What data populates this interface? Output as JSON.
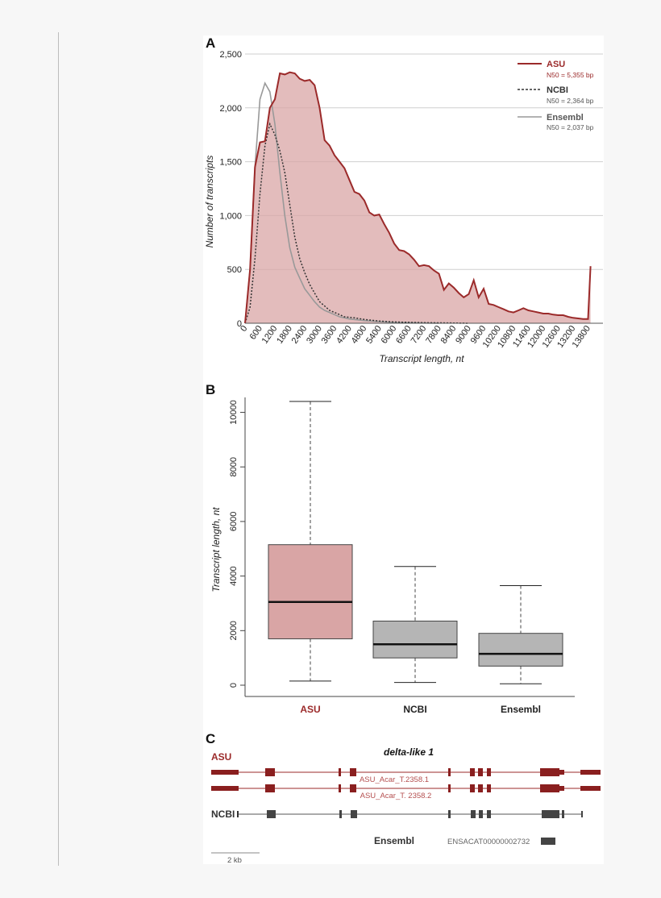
{
  "colors": {
    "asu": "#9b2a2a",
    "asu_fill": "#d9a5a5",
    "ncbi": "#333333",
    "ensembl": "#999999",
    "box_gray": "#b5b5b5"
  },
  "chart_data": [
    {
      "panel": "A",
      "type": "area",
      "xlabel": "Transcript length, nt",
      "ylabel": "Number of transcripts",
      "ylim": [
        0,
        2500
      ],
      "yticks": [
        0,
        500,
        1000,
        1500,
        2000,
        2500
      ],
      "ytick_labels": [
        "0",
        "500",
        "1,000",
        "1,500",
        "2,000",
        "2,500"
      ],
      "xlim": [
        0,
        14400
      ],
      "xticks": [
        0,
        600,
        1200,
        1800,
        2400,
        3000,
        3600,
        4200,
        4800,
        5400,
        6000,
        6600,
        7200,
        7800,
        8400,
        9000,
        9600,
        10200,
        10800,
        11400,
        12000,
        12600,
        13200,
        13800
      ],
      "legend": [
        {
          "name": "ASU",
          "n50": "N50 = 5,355 bp"
        },
        {
          "name": "NCBI",
          "n50": "N50 = 2,364 bp"
        },
        {
          "name": "Ensembl",
          "n50": "N50 = 2,037 bp"
        }
      ],
      "series": [
        {
          "name": "ASU",
          "points": [
            [
              0,
              0
            ],
            [
              200,
              500
            ],
            [
              400,
              1450
            ],
            [
              600,
              1680
            ],
            [
              800,
              1690
            ],
            [
              1000,
              2000
            ],
            [
              1200,
              2080
            ],
            [
              1400,
              2320
            ],
            [
              1600,
              2310
            ],
            [
              1800,
              2330
            ],
            [
              2000,
              2320
            ],
            [
              2200,
              2270
            ],
            [
              2400,
              2250
            ],
            [
              2600,
              2260
            ],
            [
              2800,
              2210
            ],
            [
              3000,
              2000
            ],
            [
              3200,
              1700
            ],
            [
              3400,
              1650
            ],
            [
              3600,
              1560
            ],
            [
              3800,
              1500
            ],
            [
              4000,
              1440
            ],
            [
              4200,
              1330
            ],
            [
              4400,
              1220
            ],
            [
              4600,
              1200
            ],
            [
              4800,
              1140
            ],
            [
              5000,
              1030
            ],
            [
              5200,
              1000
            ],
            [
              5400,
              1010
            ],
            [
              5600,
              920
            ],
            [
              5800,
              840
            ],
            [
              6000,
              740
            ],
            [
              6200,
              680
            ],
            [
              6400,
              670
            ],
            [
              6600,
              640
            ],
            [
              6800,
              590
            ],
            [
              7000,
              530
            ],
            [
              7200,
              540
            ],
            [
              7400,
              530
            ],
            [
              7600,
              490
            ],
            [
              7800,
              460
            ],
            [
              8000,
              310
            ],
            [
              8200,
              370
            ],
            [
              8400,
              330
            ],
            [
              8600,
              280
            ],
            [
              8800,
              240
            ],
            [
              9000,
              270
            ],
            [
              9200,
              400
            ],
            [
              9400,
              240
            ],
            [
              9600,
              320
            ],
            [
              9800,
              180
            ],
            [
              10000,
              170
            ],
            [
              10200,
              150
            ],
            [
              10400,
              130
            ],
            [
              10600,
              110
            ],
            [
              10800,
              100
            ],
            [
              11000,
              120
            ],
            [
              11200,
              140
            ],
            [
              11400,
              120
            ],
            [
              11600,
              110
            ],
            [
              11800,
              100
            ],
            [
              12000,
              90
            ],
            [
              12200,
              90
            ],
            [
              12400,
              80
            ],
            [
              12600,
              75
            ],
            [
              12800,
              75
            ],
            [
              13000,
              60
            ],
            [
              13200,
              50
            ],
            [
              13400,
              45
            ],
            [
              13600,
              40
            ],
            [
              13800,
              40
            ],
            [
              13900,
              530
            ]
          ]
        },
        {
          "name": "NCBI",
          "points": [
            [
              0,
              0
            ],
            [
              200,
              150
            ],
            [
              400,
              600
            ],
            [
              600,
              1200
            ],
            [
              800,
              1650
            ],
            [
              1000,
              1850
            ],
            [
              1200,
              1750
            ],
            [
              1400,
              1600
            ],
            [
              1600,
              1400
            ],
            [
              1800,
              1100
            ],
            [
              2000,
              800
            ],
            [
              2200,
              600
            ],
            [
              2400,
              470
            ],
            [
              2600,
              360
            ],
            [
              2800,
              280
            ],
            [
              3000,
              200
            ],
            [
              3200,
              160
            ],
            [
              3400,
              120
            ],
            [
              3600,
              100
            ],
            [
              3800,
              80
            ],
            [
              4000,
              60
            ],
            [
              4400,
              50
            ],
            [
              4800,
              35
            ],
            [
              5400,
              20
            ],
            [
              6000,
              12
            ],
            [
              6600,
              8
            ],
            [
              7200,
              5
            ],
            [
              8400,
              2
            ],
            [
              9000,
              0
            ]
          ]
        },
        {
          "name": "Ensembl",
          "points": [
            [
              0,
              0
            ],
            [
              200,
              500
            ],
            [
              400,
              1450
            ],
            [
              600,
              2080
            ],
            [
              800,
              2230
            ],
            [
              1000,
              2150
            ],
            [
              1200,
              1850
            ],
            [
              1400,
              1400
            ],
            [
              1600,
              1000
            ],
            [
              1800,
              700
            ],
            [
              2000,
              520
            ],
            [
              2200,
              420
            ],
            [
              2400,
              320
            ],
            [
              2600,
              260
            ],
            [
              2800,
              200
            ],
            [
              3000,
              150
            ],
            [
              3200,
              120
            ],
            [
              3400,
              100
            ],
            [
              3600,
              80
            ],
            [
              3800,
              60
            ],
            [
              4200,
              40
            ],
            [
              4800,
              25
            ],
            [
              5400,
              15
            ],
            [
              6000,
              8
            ],
            [
              6600,
              5
            ],
            [
              7200,
              2
            ],
            [
              7800,
              0
            ]
          ]
        }
      ]
    },
    {
      "panel": "B",
      "type": "box",
      "ylabel": "Transcript length, nt",
      "ylim": [
        0,
        10400
      ],
      "yticks": [
        0,
        2000,
        4000,
        6000,
        8000,
        10000
      ],
      "ytick_labels": [
        "0",
        "2000",
        "4000",
        "6000",
        "8000",
        "10000"
      ],
      "categories": [
        "ASU",
        "NCBI",
        "Ensembl"
      ],
      "boxes": [
        {
          "name": "ASU",
          "min": 150,
          "q1": 1700,
          "median": 3050,
          "q3": 5150,
          "max": 10400
        },
        {
          "name": "NCBI",
          "min": 100,
          "q1": 1000,
          "median": 1500,
          "q3": 2350,
          "max": 4350
        },
        {
          "name": "Ensembl",
          "min": 50,
          "q1": 700,
          "median": 1150,
          "q3": 1900,
          "max": 3650
        }
      ]
    }
  ],
  "panel_labels": {
    "a": "A",
    "b": "B",
    "c": "C"
  },
  "gene_panel": {
    "title": "delta-like 1",
    "asu_label": "ASU",
    "ncbi_label": "NCBI",
    "ensembl_label": "Ensembl",
    "transcript_1": "ASU_Acar_T.2358.1",
    "transcript_2": "ASU_Acar_T. 2358.2",
    "ensembl_id": "ENSACAT00000002732",
    "scale_label": "2 kb"
  }
}
